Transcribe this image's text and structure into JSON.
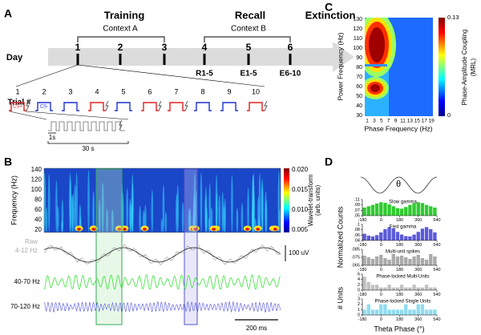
{
  "panel_a": {
    "label": "A",
    "phases": [
      "Training",
      "Recall",
      "Extinction"
    ],
    "contexts": [
      "Context A",
      "Context B"
    ],
    "day_label": "Day",
    "days": [
      "1",
      "2",
      "3",
      "4",
      "5",
      "6"
    ],
    "sessions": [
      "R1-5",
      "E1-5",
      "E6-10"
    ],
    "trial_label": "Trial #",
    "trials": [
      "1",
      "2",
      "3",
      "4",
      "5",
      "6",
      "7",
      "8",
      "9",
      "10"
    ],
    "cs_plus": "CS+",
    "cs_minus": "CS-",
    "scale_short": "1s",
    "scale_long": "30 s"
  },
  "panel_b": {
    "label": "B",
    "y_label": "Frequency (Hz)",
    "yticks": [
      "140",
      "120",
      "100",
      "80",
      "60",
      "40",
      "20"
    ],
    "colorbar_ticks": [
      "0.020",
      "0.015",
      "0.010",
      "0.005"
    ],
    "colorbar_label": [
      "Wavelet-transform",
      "(arb. units)"
    ],
    "raw_label": [
      "Raw",
      "4-12 Hz"
    ],
    "slow_label": "40-70 Hz",
    "fast_label": "70-120 Hz",
    "amp_scale": "100 uV",
    "time_scale": "200 ms"
  },
  "panel_c": {
    "label": "C",
    "y_label": "Power Frequency (Hz)",
    "yticks": [
      "130",
      "120",
      "110",
      "100",
      "90",
      "80",
      "70",
      "60",
      "50",
      "40",
      "30"
    ],
    "x_label": "Phase Frequency (Hz)",
    "xticks": [
      "1",
      "3",
      "5",
      "7",
      "9",
      "11",
      "13",
      "15",
      "17",
      "19"
    ],
    "colorbar_ticks": [
      "0.13",
      "0"
    ],
    "colorbar_label": [
      "Phase-Amplitude Coupling",
      "(MRL)"
    ]
  },
  "panel_d": {
    "label": "D",
    "theta": "θ",
    "y_label_counts": "Normalized Counts",
    "y_label_units": "# Units",
    "x_label": "Theta Phase (°)",
    "charts": [
      {
        "type": "bar",
        "title": "Slow gamma",
        "color": "#2ecc2e",
        "xlim": [
          -180,
          540
        ],
        "xticks": [
          -180,
          0,
          180,
          360,
          540
        ],
        "ylim": [
          0.05,
          0.11
        ],
        "yticks": [
          {
            "value": 0.11,
            "label": ".11"
          },
          {
            "value": 0.09,
            "label": ".09"
          },
          {
            "value": 0.07,
            "label": ".07"
          },
          {
            "value": 0.05,
            "label": ".05"
          }
        ],
        "values": [
          0.08,
          0.085,
          0.09,
          0.095,
          0.1,
          0.098,
          0.092,
          0.085,
          0.078,
          0.076,
          0.082,
          0.09,
          0.096,
          0.1,
          0.097,
          0.09,
          0.085,
          0.08
        ]
      },
      {
        "type": "bar",
        "title": "Fast gamma",
        "color": "#5a5ad8",
        "xlim": [
          -180,
          540
        ],
        "xticks": [
          -180,
          0,
          180,
          360,
          540
        ],
        "ylim": [
          0.04,
          0.1
        ],
        "yticks": [
          {
            "value": 0.1,
            "label": ".1"
          },
          {
            "value": 0.08,
            "label": ".08"
          },
          {
            "value": 0.06,
            "label": ".06"
          },
          {
            "value": 0.04,
            "label": ".04"
          }
        ],
        "values": [
          0.065,
          0.058,
          0.055,
          0.06,
          0.07,
          0.082,
          0.09,
          0.085,
          0.072,
          0.062,
          0.056,
          0.055,
          0.062,
          0.072,
          0.084,
          0.09,
          0.082,
          0.07
        ]
      },
      {
        "type": "bar",
        "title": "Multi-unit spikes",
        "color": "#aaaaaa",
        "xlim": [
          -180,
          540
        ],
        "xticks": [
          -180,
          0,
          180,
          360,
          540
        ],
        "ylim": [
          0.065,
          0.085
        ],
        "yticks": [
          {
            "value": 0.085,
            "label": ".085"
          },
          {
            "value": 0.075,
            "label": ".075"
          },
          {
            "value": 0.065,
            "label": ".065"
          }
        ],
        "values": [
          0.077,
          0.075,
          0.073,
          0.076,
          0.078,
          0.074,
          0.072,
          0.079,
          0.076,
          0.077,
          0.075,
          0.073,
          0.076,
          0.078,
          0.074,
          0.072,
          0.079,
          0.076
        ]
      },
      {
        "type": "bar",
        "title": "Phase-locked Multi-Units",
        "color": "#c0c0c0",
        "xlim": [
          -180,
          540
        ],
        "xticks": [
          -180,
          0,
          180,
          360,
          540
        ],
        "ylim": [
          0,
          6
        ],
        "yticks": [
          6,
          4,
          2,
          0
        ],
        "values": [
          5,
          3,
          2,
          2,
          1,
          1,
          2,
          1,
          1,
          2,
          1,
          1,
          2,
          1,
          1,
          2,
          1,
          1
        ]
      },
      {
        "type": "bar",
        "title": "Phase-locked Single Units",
        "color": "#8fdcef",
        "xlim": [
          -180,
          540
        ],
        "xticks": [
          -180,
          0,
          180,
          360,
          540
        ],
        "ylim": [
          0,
          3
        ],
        "yticks": [
          3,
          2,
          1,
          0
        ],
        "values": [
          1,
          2,
          1,
          1,
          2,
          2,
          1,
          1,
          1,
          1,
          2,
          1,
          1,
          2,
          2,
          1,
          1,
          1
        ]
      }
    ]
  }
}
